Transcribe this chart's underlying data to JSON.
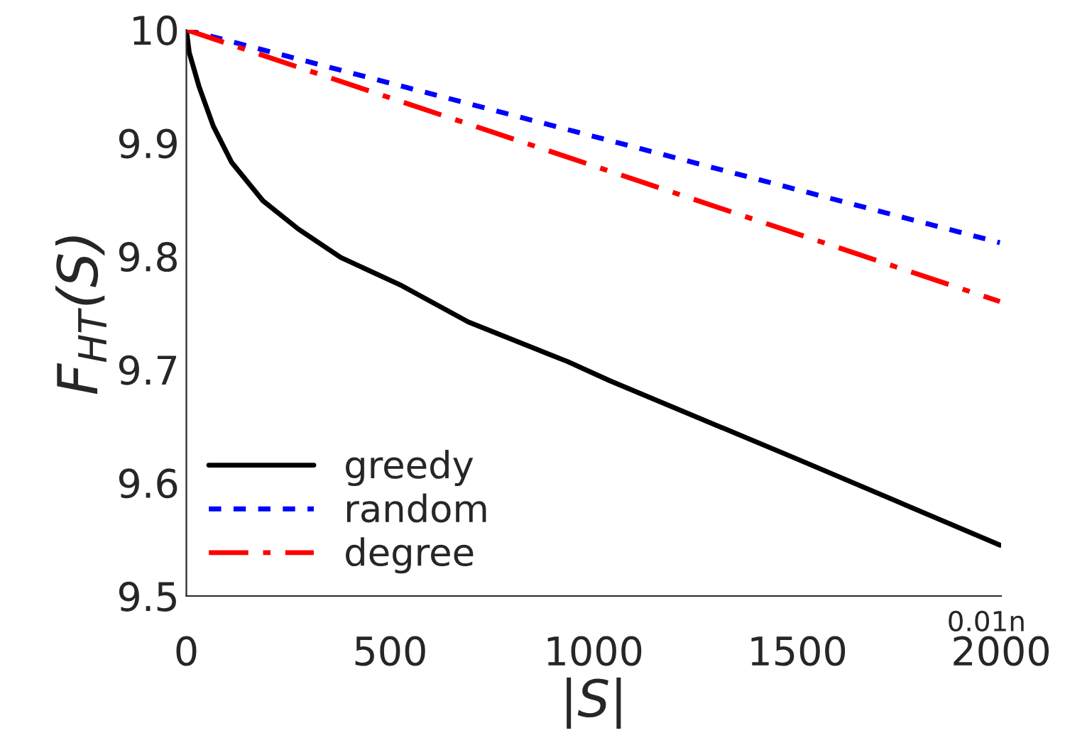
{
  "chart_data": {
    "type": "line",
    "xlabel": "|S|",
    "ylabel": "F$_{HT}$(S)",
    "xlim": [
      0,
      2000
    ],
    "xticks": [
      0,
      500,
      1000,
      1500,
      2000
    ],
    "annotations": [
      "0.01n"
    ],
    "ylim": [
      9.5,
      10
    ],
    "yticks": [
      9.5,
      9.6,
      9.7,
      9.8,
      9.9,
      10
    ],
    "grid": false,
    "legend": "bottom left",
    "series": [
      {
        "name": "greedy",
        "color": "#000000",
        "line_style": "solid",
        "x": [
          0,
          7,
          31,
          66,
          111,
          188,
          275,
          379,
          529,
          692,
          936,
          1040,
          1499,
          1997
        ],
        "values": [
          10,
          9.98,
          9.95,
          9.915,
          9.883,
          9.849,
          9.824,
          9.799,
          9.774,
          9.742,
          9.707,
          9.69,
          9.621,
          9.545
        ]
      },
      {
        "name": "random",
        "color": "#0000ff",
        "line_style": "dotted",
        "x": [
          0,
          1997
        ],
        "values": [
          10,
          9.812
        ]
      },
      {
        "name": "degree",
        "color": "#ff0000",
        "line_style": "dashdot",
        "x": [
          0,
          1997
        ],
        "values": [
          10,
          9.76
        ]
      }
    ]
  }
}
